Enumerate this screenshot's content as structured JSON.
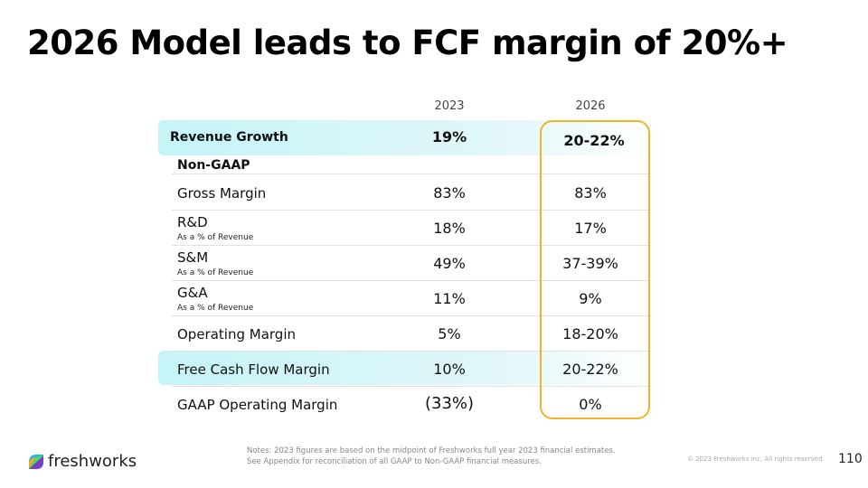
{
  "title": "2026 Model leads to FCF margin of 20%+",
  "columns": [
    "2023",
    "2026"
  ],
  "revenue_growth": {
    "label": "Revenue Growth",
    "v2023": "19%",
    "v2026": "20-22%"
  },
  "section": "Non-GAAP",
  "rows": [
    {
      "label": "Gross Margin",
      "sub": "",
      "v2023": "83%",
      "v2026": "83%"
    },
    {
      "label": "R&D",
      "sub": "As a % of Revenue",
      "v2023": "18%",
      "v2026": "17%"
    },
    {
      "label": "S&M",
      "sub": "As a % of Revenue",
      "v2023": "49%",
      "v2026": "37-39%"
    },
    {
      "label": "G&A",
      "sub": "As a % of Revenue",
      "v2023": "11%",
      "v2026": "9%"
    },
    {
      "label": "Operating Margin",
      "sub": "",
      "v2023": "5%",
      "v2026": "18-20%"
    },
    {
      "label": "Free Cash Flow Margin",
      "sub": "",
      "v2023": "10%",
      "v2026": "20-22%"
    },
    {
      "label": "GAAP Operating Margin",
      "sub": "",
      "v2023": "(33%)",
      "v2026": "0%"
    }
  ],
  "footer": {
    "logo": "freshworks",
    "notes": [
      "Notes: 2023 figures are based on the midpoint of Freshworks full year 2023 financial estimates.",
      "See Appendix for reconciliation of all GAAP to Non-GAAP financial measures."
    ],
    "copyright": "© 2023 Freshworks Inc. All rights reserved.",
    "page": "110"
  },
  "colors": {
    "highlight": "#f0b429",
    "band": "#c5f4f7"
  }
}
